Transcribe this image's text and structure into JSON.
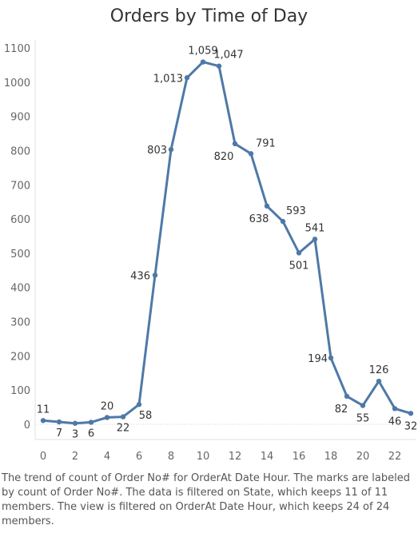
{
  "chart_data": {
    "type": "line",
    "title": "Orders by Time of Day",
    "xlabel": "",
    "ylabel": "",
    "x": [
      0,
      1,
      2,
      3,
      4,
      5,
      6,
      7,
      8,
      9,
      10,
      11,
      12,
      13,
      14,
      15,
      16,
      17,
      18,
      19,
      20,
      21,
      22,
      23
    ],
    "series": [
      {
        "values": [
          11,
          7,
          3,
          6,
          20,
          22,
          58,
          436,
          803,
          1013,
          1059,
          1047,
          820,
          791,
          638,
          593,
          501,
          541,
          194,
          82,
          55,
          126,
          46,
          32
        ],
        "labels": [
          "11",
          "7",
          "3",
          "6",
          "20",
          "22",
          "58",
          "436",
          "803",
          "1,013",
          "1,059",
          "1,047",
          "820",
          "791",
          "638",
          "593",
          "501",
          "541",
          "194",
          "82",
          "55",
          "126",
          "46",
          "32"
        ]
      }
    ],
    "xticks": [
      0,
      2,
      4,
      6,
      8,
      10,
      12,
      14,
      16,
      18,
      20,
      22
    ],
    "yticks": [
      0,
      100,
      200,
      300,
      400,
      500,
      600,
      700,
      800,
      900,
      1000,
      1100
    ],
    "xlim": [
      -0.5,
      23.3
    ],
    "ylim": [
      0,
      1100
    ],
    "grid": {
      "vertical": false,
      "horizontal": false,
      "zero_line": "dotted"
    },
    "line_color": "#4e79a7"
  },
  "caption": "The trend of count of Order No# for OrderAt Date Hour.  The marks are labeled by count of Order No#. The data is filtered on State, which keeps 11 of 11 members. The view is filtered on OrderAt Date Hour, which keeps 24 of 24 members."
}
